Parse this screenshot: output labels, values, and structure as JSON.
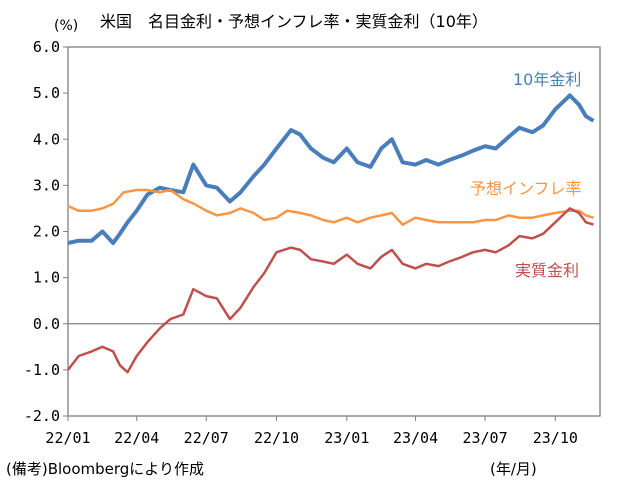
{
  "title": "米国　名目金利・予想インフレ率・実質金利（10年）",
  "unit": "(%)",
  "source_note": "(備考)Bloombergにより作成",
  "x_unit": "(年/月)",
  "chart_data": {
    "type": "line",
    "title": "米国　名目金利・予想インフレ率・実質金利（10年）",
    "ylabel": "(%)",
    "xlabel": "(年/月)",
    "ylim": [
      -2.0,
      6.0
    ],
    "y_ticks": [
      "6.0",
      "5.0",
      "4.0",
      "3.0",
      "2.0",
      "1.0",
      "0.0",
      "-1.0",
      "-2.0"
    ],
    "x_ticks": [
      {
        "label": "22/01",
        "date": "2022-01-01"
      },
      {
        "label": "22/04",
        "date": "2022-04-01"
      },
      {
        "label": "22/07",
        "date": "2022-07-01"
      },
      {
        "label": "22/10",
        "date": "2022-10-01"
      },
      {
        "label": "23/01",
        "date": "2023-01-01"
      },
      {
        "label": "23/04",
        "date": "2023-04-01"
      },
      {
        "label": "23/07",
        "date": "2023-07-01"
      },
      {
        "label": "23/10",
        "date": "2023-10-01"
      }
    ],
    "grid": false,
    "zero_line": true,
    "series": [
      {
        "name": "10年金利",
        "color": "#4a7ebb",
        "width": 4,
        "x": [
          "2022-01-01",
          "2022-01-15",
          "2022-02-01",
          "2022-02-15",
          "2022-03-01",
          "2022-03-10",
          "2022-03-20",
          "2022-04-01",
          "2022-04-15",
          "2022-05-01",
          "2022-05-15",
          "2022-06-01",
          "2022-06-14",
          "2022-07-01",
          "2022-07-15",
          "2022-08-01",
          "2022-08-15",
          "2022-09-01",
          "2022-09-15",
          "2022-10-01",
          "2022-10-20",
          "2022-11-01",
          "2022-11-15",
          "2022-12-01",
          "2022-12-15",
          "2023-01-01",
          "2023-01-15",
          "2023-02-01",
          "2023-02-15",
          "2023-03-01",
          "2023-03-15",
          "2023-04-01",
          "2023-04-15",
          "2023-05-01",
          "2023-05-15",
          "2023-06-01",
          "2023-06-15",
          "2023-07-01",
          "2023-07-15",
          "2023-08-01",
          "2023-08-15",
          "2023-09-01",
          "2023-09-15",
          "2023-10-01",
          "2023-10-20",
          "2023-11-01",
          "2023-11-10",
          "2023-11-20"
        ],
        "y": [
          1.75,
          1.8,
          1.8,
          2.0,
          1.75,
          1.95,
          2.2,
          2.45,
          2.8,
          2.95,
          2.9,
          2.85,
          3.45,
          3.0,
          2.95,
          2.65,
          2.85,
          3.2,
          3.45,
          3.8,
          4.2,
          4.1,
          3.8,
          3.6,
          3.5,
          3.8,
          3.5,
          3.4,
          3.8,
          4.0,
          3.5,
          3.45,
          3.55,
          3.45,
          3.55,
          3.65,
          3.75,
          3.85,
          3.8,
          4.05,
          4.25,
          4.15,
          4.3,
          4.65,
          4.95,
          4.75,
          4.5,
          4.4
        ]
      },
      {
        "name": "予想インフレ率",
        "color": "#f79646",
        "width": 2.5,
        "x": [
          "2022-01-01",
          "2022-01-15",
          "2022-02-01",
          "2022-02-15",
          "2022-03-01",
          "2022-03-15",
          "2022-04-01",
          "2022-04-15",
          "2022-05-01",
          "2022-05-15",
          "2022-06-01",
          "2022-06-15",
          "2022-07-01",
          "2022-07-15",
          "2022-08-01",
          "2022-08-15",
          "2022-09-01",
          "2022-09-15",
          "2022-10-01",
          "2022-10-15",
          "2022-11-01",
          "2022-11-15",
          "2022-12-01",
          "2022-12-15",
          "2023-01-01",
          "2023-01-15",
          "2023-02-01",
          "2023-02-15",
          "2023-03-01",
          "2023-03-15",
          "2023-04-01",
          "2023-04-15",
          "2023-05-01",
          "2023-05-15",
          "2023-06-01",
          "2023-06-15",
          "2023-07-01",
          "2023-07-15",
          "2023-08-01",
          "2023-08-15",
          "2023-09-01",
          "2023-09-15",
          "2023-10-01",
          "2023-10-20",
          "2023-11-01",
          "2023-11-10",
          "2023-11-20"
        ],
        "y": [
          2.55,
          2.45,
          2.45,
          2.5,
          2.6,
          2.85,
          2.9,
          2.9,
          2.85,
          2.9,
          2.7,
          2.6,
          2.45,
          2.35,
          2.4,
          2.5,
          2.4,
          2.25,
          2.3,
          2.45,
          2.4,
          2.35,
          2.25,
          2.2,
          2.3,
          2.2,
          2.3,
          2.35,
          2.4,
          2.15,
          2.3,
          2.25,
          2.2,
          2.2,
          2.2,
          2.2,
          2.25,
          2.25,
          2.35,
          2.3,
          2.3,
          2.35,
          2.4,
          2.45,
          2.45,
          2.35,
          2.3
        ]
      },
      {
        "name": "実質金利",
        "color": "#c0504d",
        "width": 2.5,
        "x": [
          "2022-01-01",
          "2022-01-15",
          "2022-02-01",
          "2022-02-15",
          "2022-03-01",
          "2022-03-10",
          "2022-03-20",
          "2022-04-01",
          "2022-04-15",
          "2022-05-01",
          "2022-05-15",
          "2022-06-01",
          "2022-06-14",
          "2022-07-01",
          "2022-07-15",
          "2022-08-01",
          "2022-08-15",
          "2022-09-01",
          "2022-09-15",
          "2022-10-01",
          "2022-10-20",
          "2022-11-01",
          "2022-11-15",
          "2022-12-01",
          "2022-12-15",
          "2023-01-01",
          "2023-01-15",
          "2023-02-01",
          "2023-02-15",
          "2023-03-01",
          "2023-03-15",
          "2023-04-01",
          "2023-04-15",
          "2023-05-01",
          "2023-05-15",
          "2023-06-01",
          "2023-06-15",
          "2023-07-01",
          "2023-07-15",
          "2023-08-01",
          "2023-08-15",
          "2023-09-01",
          "2023-09-15",
          "2023-10-01",
          "2023-10-20",
          "2023-11-01",
          "2023-11-10",
          "2023-11-20"
        ],
        "y": [
          -1.0,
          -0.7,
          -0.6,
          -0.5,
          -0.6,
          -0.9,
          -1.05,
          -0.7,
          -0.4,
          -0.1,
          0.1,
          0.2,
          0.75,
          0.6,
          0.55,
          0.1,
          0.35,
          0.8,
          1.1,
          1.55,
          1.65,
          1.6,
          1.4,
          1.35,
          1.3,
          1.5,
          1.3,
          1.2,
          1.45,
          1.6,
          1.3,
          1.2,
          1.3,
          1.25,
          1.35,
          1.45,
          1.55,
          1.6,
          1.55,
          1.7,
          1.9,
          1.85,
          1.95,
          2.2,
          2.5,
          2.4,
          2.2,
          2.15
        ]
      }
    ]
  }
}
